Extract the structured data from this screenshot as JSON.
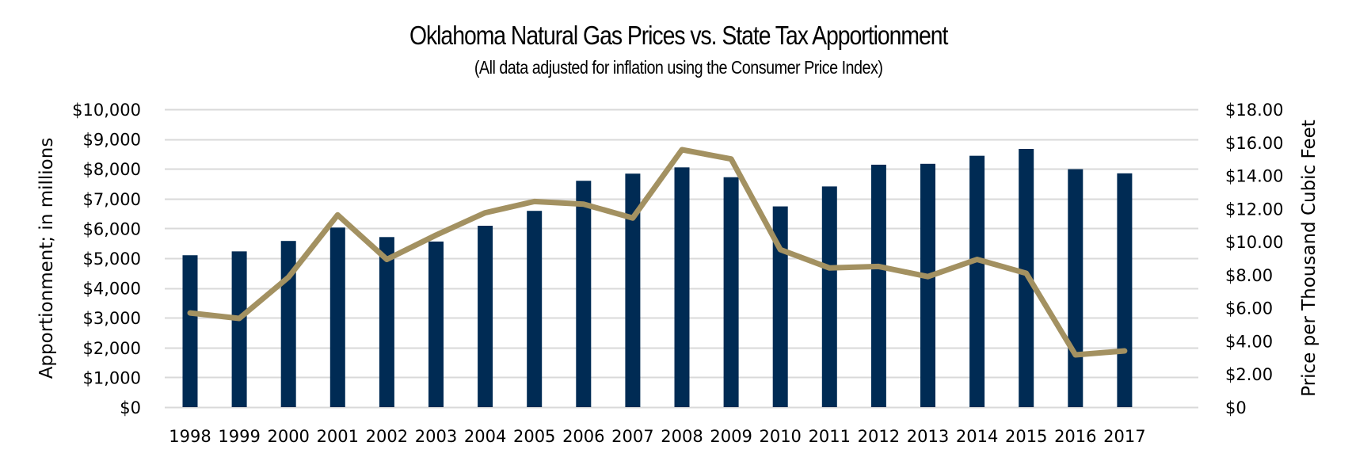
{
  "chart_data": {
    "type": "bar+line",
    "title": "Oklahoma Natural Gas Prices vs. State Tax Apportionment",
    "subtitle": "(All data adjusted for inflation using the Consumer Price Index)",
    "categories": [
      "1998",
      "1999",
      "2000",
      "2001",
      "2002",
      "2003",
      "2004",
      "2005",
      "2006",
      "2007",
      "2008",
      "2009",
      "2010",
      "2011",
      "2012",
      "2013",
      "2014",
      "2015",
      "2016",
      "2017"
    ],
    "series": [
      {
        "name": "State Tax Apportionment",
        "type": "bar",
        "axis": "left",
        "color": "#002B54",
        "values": [
          5100,
          5230,
          5580,
          6030,
          5710,
          5560,
          6090,
          6590,
          7600,
          7840,
          8050,
          7720,
          6740,
          7410,
          8140,
          8170,
          8440,
          8670,
          7990,
          7850
        ]
      },
      {
        "name": "Natural Gas Price",
        "type": "line",
        "axis": "right",
        "color": "#A39161",
        "values": [
          5.69,
          5.36,
          7.85,
          11.62,
          8.93,
          10.4,
          11.75,
          12.43,
          12.27,
          11.43,
          15.56,
          15.0,
          9.52,
          8.41,
          8.5,
          7.89,
          8.93,
          8.09,
          3.16,
          3.4
        ]
      }
    ],
    "ylabel": "Apportionment; in millions",
    "ylabel_right": "Price per Thousand Cubic Feet",
    "xlabel": "",
    "ylim": [
      0,
      10000
    ],
    "ylim_right": [
      0,
      18
    ],
    "yticks": [
      "$0",
      "$1,000",
      "$2,000",
      "$3,000",
      "$4,000",
      "$5,000",
      "$6,000",
      "$7,000",
      "$8,000",
      "$9,000",
      "$10,000"
    ],
    "yticks_right": [
      "$0",
      "$2.00",
      "$4.00",
      "$6.00",
      "$8.00",
      "$10.00",
      "$12.00",
      "$14.00",
      "$16.00",
      "$18.00"
    ],
    "grid": true,
    "legend": "none"
  }
}
